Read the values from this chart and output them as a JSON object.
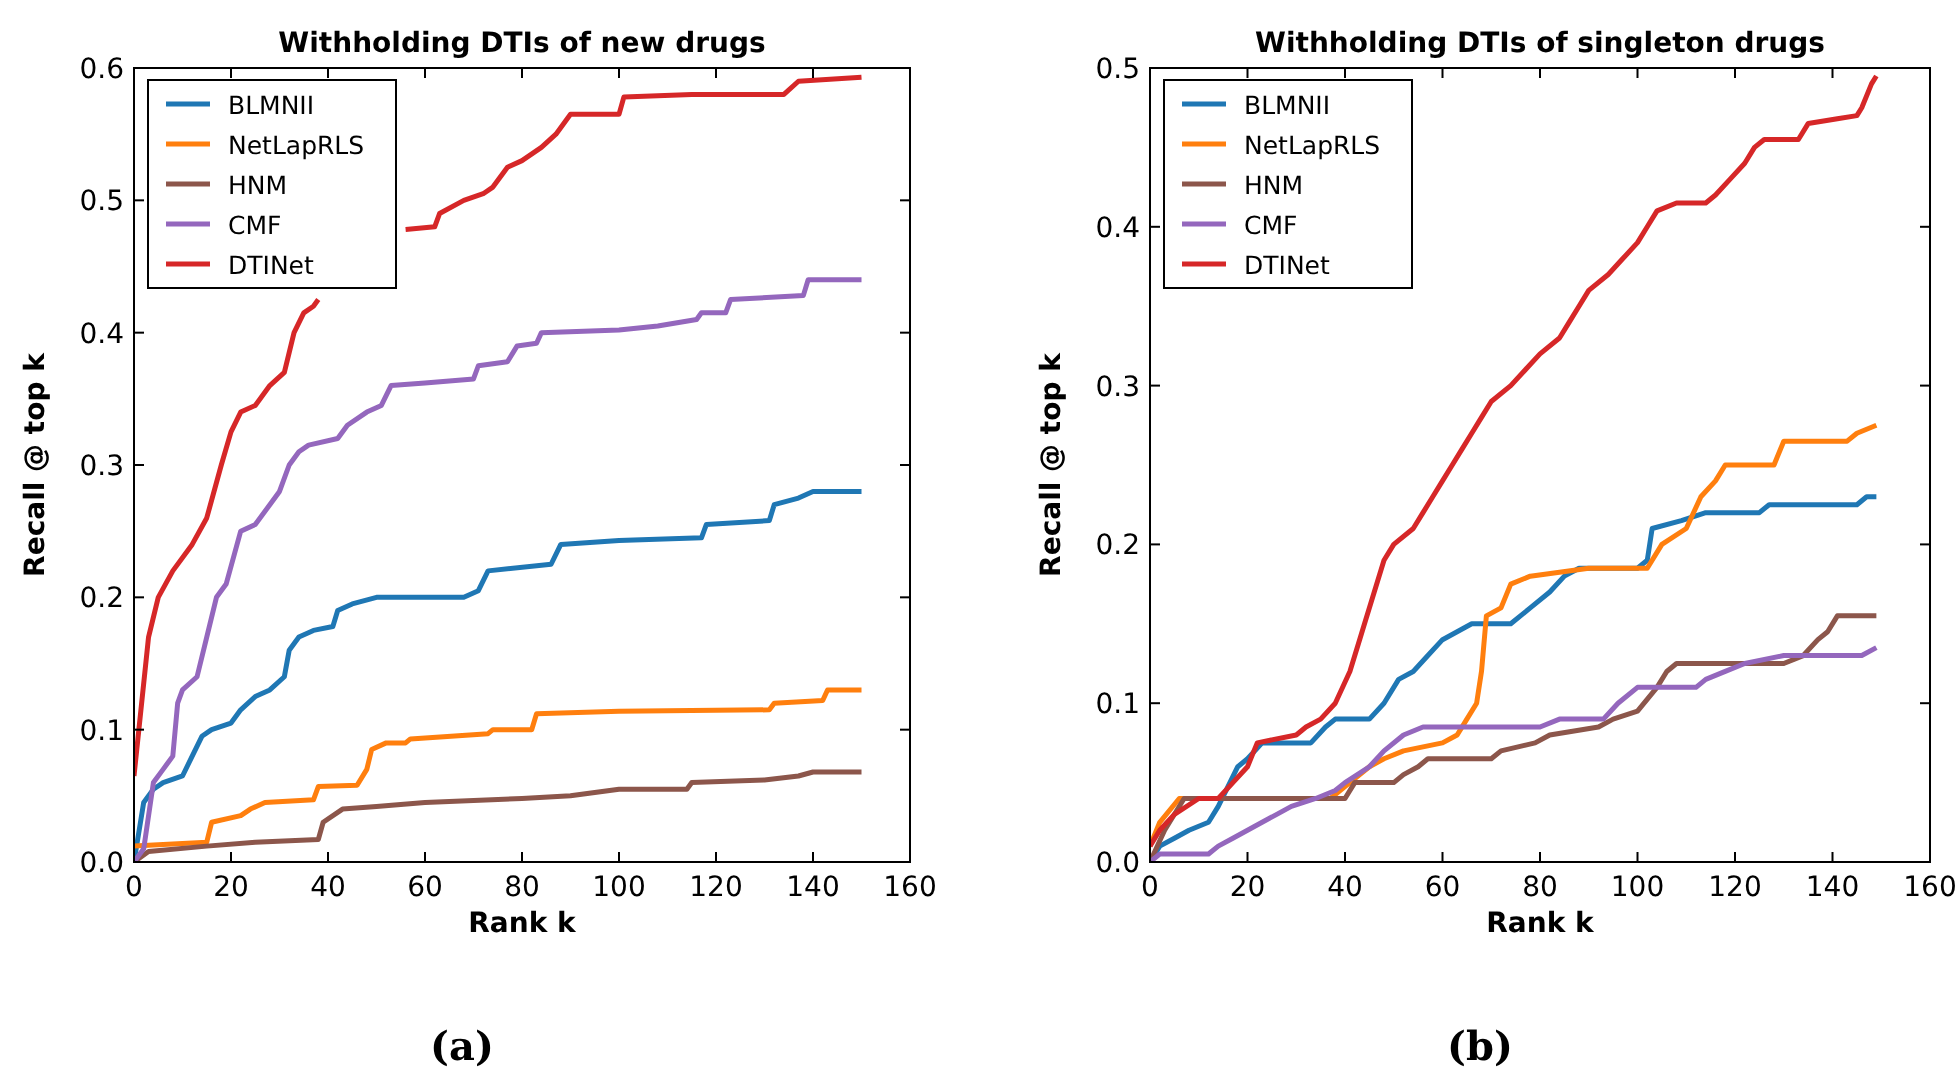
{
  "chart_data": [
    {
      "type": "line",
      "title": "Withholding DTIs of new drugs",
      "xlabel": "Rank k",
      "ylabel": "Recall @ top k",
      "annotations": [
        "(a)"
      ],
      "xlim": [
        0,
        160
      ],
      "ylim": [
        0,
        0.6
      ],
      "xticks": [
        0,
        20,
        40,
        60,
        80,
        100,
        120,
        140,
        160
      ],
      "yticks": [
        {
          "value": 0,
          "label": "0.0"
        },
        0.1,
        0.2,
        0.3,
        0.4,
        0.5,
        0.6
      ],
      "grid": false,
      "legend": "top left",
      "marker": "none",
      "line_style": "solid",
      "series": [
        {
          "name": "BLMNII",
          "color": "#1f77b4",
          "x": [
            0,
            2,
            4,
            6,
            10,
            12,
            14,
            16,
            20,
            22,
            25,
            28,
            31,
            32,
            34,
            37,
            41,
            42,
            45,
            50,
            68,
            71,
            73,
            86,
            88,
            100,
            117,
            118,
            131,
            132,
            137,
            140,
            150
          ],
          "values": [
            0,
            0.045,
            0.055,
            0.06,
            0.065,
            0.08,
            0.095,
            0.1,
            0.105,
            0.115,
            0.125,
            0.13,
            0.14,
            0.16,
            0.17,
            0.175,
            0.178,
            0.19,
            0.195,
            0.2,
            0.2,
            0.205,
            0.22,
            0.225,
            0.24,
            0.243,
            0.245,
            0.255,
            0.258,
            0.27,
            0.275,
            0.28,
            0.28
          ]
        },
        {
          "name": "NetLapRLS",
          "color": "#ff7f0e",
          "x": [
            0,
            15,
            16,
            22,
            24,
            27,
            37,
            38,
            46,
            48,
            49,
            52,
            56,
            57,
            73,
            74,
            82,
            83,
            100,
            131,
            132,
            142,
            143,
            150
          ],
          "values": [
            0.012,
            0.015,
            0.03,
            0.035,
            0.04,
            0.045,
            0.047,
            0.057,
            0.058,
            0.07,
            0.085,
            0.09,
            0.09,
            0.093,
            0.097,
            0.1,
            0.1,
            0.112,
            0.114,
            0.115,
            0.12,
            0.122,
            0.13,
            0.13
          ]
        },
        {
          "name": "HNM",
          "color": "#8c564b",
          "x": [
            0,
            3,
            15,
            25,
            38,
            39,
            43,
            50,
            60,
            80,
            90,
            100,
            114,
            115,
            130,
            137,
            140,
            150
          ],
          "values": [
            0,
            0.008,
            0.012,
            0.015,
            0.017,
            0.03,
            0.04,
            0.042,
            0.045,
            0.048,
            0.05,
            0.055,
            0.055,
            0.06,
            0.062,
            0.065,
            0.068,
            0.068
          ]
        },
        {
          "name": "CMF",
          "color": "#9467bd",
          "x": [
            0,
            2,
            4,
            6,
            8,
            9,
            10,
            13,
            15,
            17,
            19,
            22,
            25,
            28,
            30,
            32,
            34,
            36,
            42,
            44,
            48,
            51,
            53,
            60,
            70,
            71,
            77,
            79,
            83,
            84,
            100,
            108,
            116,
            117,
            122,
            123,
            138,
            139,
            150
          ],
          "values": [
            0,
            0.01,
            0.06,
            0.07,
            0.08,
            0.12,
            0.13,
            0.14,
            0.17,
            0.2,
            0.21,
            0.25,
            0.255,
            0.27,
            0.28,
            0.3,
            0.31,
            0.315,
            0.32,
            0.33,
            0.34,
            0.345,
            0.36,
            0.362,
            0.365,
            0.375,
            0.378,
            0.39,
            0.392,
            0.4,
            0.402,
            0.405,
            0.41,
            0.415,
            0.415,
            0.425,
            0.428,
            0.44,
            0.44
          ]
        },
        {
          "name": "DTINet",
          "color": "#d62728",
          "x": [
            0,
            1,
            3,
            5,
            8,
            12,
            15,
            18,
            20,
            22,
            25,
            28,
            31,
            33,
            35,
            37,
            38,
            47,
            56,
            62,
            63,
            68,
            72,
            74,
            77,
            80,
            84,
            87,
            90,
            100,
            101,
            115,
            134,
            137,
            150
          ],
          "values": [
            0.065,
            0.1,
            0.17,
            0.2,
            0.22,
            0.24,
            0.26,
            0.3,
            0.325,
            0.34,
            0.345,
            0.36,
            0.37,
            0.4,
            0.415,
            0.42,
            0.425,
            null,
            0.478,
            0.48,
            0.49,
            0.5,
            0.505,
            0.51,
            0.525,
            0.53,
            0.54,
            0.55,
            0.565,
            0.565,
            0.578,
            0.58,
            0.58,
            0.59,
            0.593
          ]
        }
      ]
    },
    {
      "type": "line",
      "title": "Withholding DTIs of singleton drugs",
      "xlabel": "Rank k",
      "ylabel": "Recall @ top k",
      "annotations": [
        "(b)"
      ],
      "xlim": [
        0,
        160
      ],
      "ylim": [
        0,
        0.5
      ],
      "xticks": [
        0,
        20,
        40,
        60,
        80,
        100,
        120,
        140,
        160
      ],
      "yticks": [
        {
          "value": 0,
          "label": "0.0"
        },
        0.1,
        0.2,
        0.3,
        0.4,
        0.5
      ],
      "grid": false,
      "legend": "top left",
      "marker": "none",
      "line_style": "solid",
      "series": [
        {
          "name": "BLMNII",
          "color": "#1f77b4",
          "x": [
            0,
            2,
            5,
            8,
            12,
            14,
            18,
            20,
            23,
            33,
            36,
            38,
            45,
            48,
            51,
            54,
            57,
            60,
            63,
            66,
            74,
            78,
            82,
            85,
            88,
            100,
            102,
            103,
            109,
            114,
            125,
            127,
            145,
            147,
            149
          ],
          "values": [
            0,
            0.01,
            0.015,
            0.02,
            0.025,
            0.035,
            0.06,
            0.065,
            0.075,
            0.075,
            0.085,
            0.09,
            0.09,
            0.1,
            0.115,
            0.12,
            0.13,
            0.14,
            0.145,
            0.15,
            0.15,
            0.16,
            0.17,
            0.18,
            0.185,
            0.185,
            0.19,
            0.21,
            0.215,
            0.22,
            0.22,
            0.225,
            0.225,
            0.23,
            0.23
          ]
        },
        {
          "name": "NetLapRLS",
          "color": "#ff7f0e",
          "x": [
            0,
            2,
            6,
            37,
            41,
            45,
            48,
            52,
            60,
            63,
            65,
            67,
            68,
            69,
            72,
            74,
            78,
            90,
            102,
            105,
            110,
            113,
            116,
            118,
            128,
            130,
            143,
            145,
            149
          ],
          "values": [
            0.01,
            0.025,
            0.04,
            0.04,
            0.05,
            0.06,
            0.065,
            0.07,
            0.075,
            0.08,
            0.09,
            0.1,
            0.12,
            0.155,
            0.16,
            0.175,
            0.18,
            0.185,
            0.185,
            0.2,
            0.21,
            0.23,
            0.24,
            0.25,
            0.25,
            0.265,
            0.265,
            0.27,
            0.275
          ]
        },
        {
          "name": "HNM",
          "color": "#8c564b",
          "x": [
            0,
            3,
            7,
            40,
            42,
            50,
            52,
            55,
            57,
            70,
            72,
            79,
            82,
            92,
            95,
            100,
            104,
            106,
            108,
            130,
            134,
            137,
            139,
            141,
            149
          ],
          "values": [
            0,
            0.02,
            0.04,
            0.04,
            0.05,
            0.05,
            0.055,
            0.06,
            0.065,
            0.065,
            0.07,
            0.075,
            0.08,
            0.085,
            0.09,
            0.095,
            0.11,
            0.12,
            0.125,
            0.125,
            0.13,
            0.14,
            0.145,
            0.155,
            0.155
          ]
        },
        {
          "name": "CMF",
          "color": "#9467bd",
          "x": [
            0,
            2,
            12,
            14,
            17,
            20,
            23,
            26,
            29,
            34,
            38,
            40,
            45,
            48,
            52,
            56,
            80,
            84,
            93,
            96,
            100,
            112,
            114,
            118,
            122,
            130,
            146,
            149
          ],
          "values": [
            0,
            0.005,
            0.005,
            0.01,
            0.015,
            0.02,
            0.025,
            0.03,
            0.035,
            0.04,
            0.045,
            0.05,
            0.06,
            0.07,
            0.08,
            0.085,
            0.085,
            0.09,
            0.09,
            0.1,
            0.11,
            0.11,
            0.115,
            0.12,
            0.125,
            0.13,
            0.13,
            0.135
          ]
        },
        {
          "name": "DTINet",
          "color": "#d62728",
          "x": [
            0,
            2,
            5,
            10,
            14,
            17,
            20,
            22,
            30,
            32,
            35,
            38,
            41,
            43,
            44,
            46,
            48,
            50,
            54,
            56,
            58,
            60,
            62,
            64,
            66,
            68,
            70,
            74,
            77,
            80,
            84,
            86,
            88,
            90,
            94,
            97,
            100,
            102,
            104,
            108,
            114,
            116,
            119,
            122,
            124,
            126,
            133,
            135,
            141,
            145,
            146,
            148,
            149
          ],
          "values": [
            0.01,
            0.02,
            0.03,
            0.04,
            0.04,
            0.05,
            0.06,
            0.075,
            0.08,
            0.085,
            0.09,
            0.1,
            0.12,
            0.14,
            0.15,
            0.17,
            0.19,
            0.2,
            0.21,
            0.22,
            0.23,
            0.24,
            0.25,
            0.26,
            0.27,
            0.28,
            0.29,
            0.3,
            0.31,
            0.32,
            0.33,
            0.34,
            0.35,
            0.36,
            0.37,
            0.38,
            0.39,
            0.4,
            0.41,
            0.415,
            0.415,
            0.42,
            0.43,
            0.44,
            0.45,
            0.455,
            0.455,
            0.465,
            0.468,
            0.47,
            0.475,
            0.49,
            0.495
          ]
        }
      ]
    }
  ]
}
